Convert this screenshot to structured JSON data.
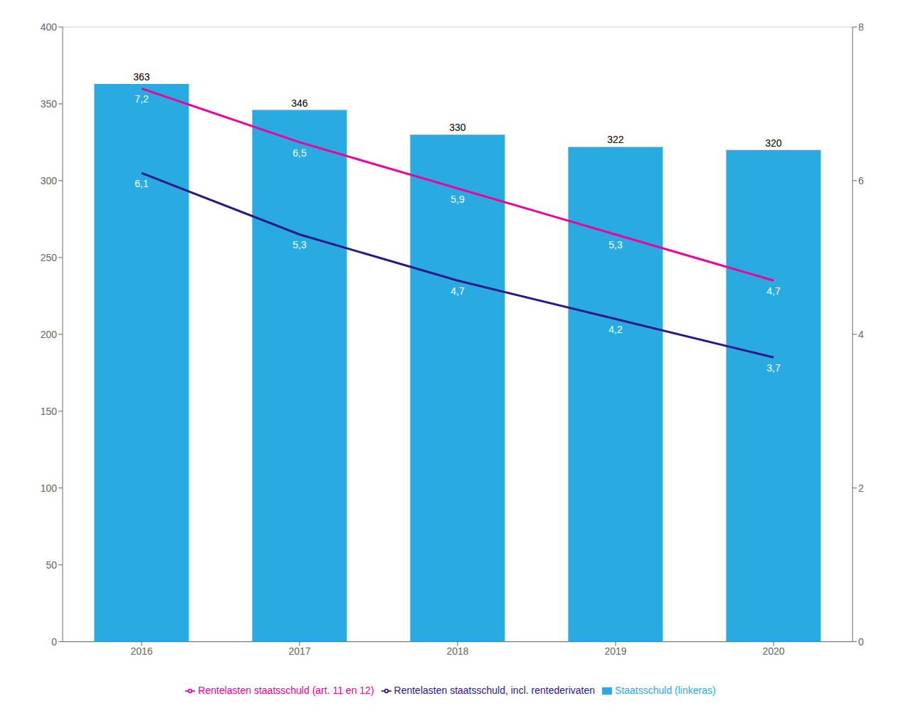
{
  "chart_data": {
    "type": "bar",
    "categories": [
      "2016",
      "2017",
      "2018",
      "2019",
      "2020"
    ],
    "series": [
      {
        "name": "Staatsschuld (linkeras)",
        "type": "bar",
        "color": "#29ABE2",
        "values": [
          363,
          346,
          330,
          322,
          320
        ],
        "data_labels": true
      },
      {
        "name": "Rentelasten staatsschuld (art. 11 en 12)",
        "type": "line",
        "axis": "y2",
        "color": "#EE0099",
        "values": [
          7.2,
          6.5,
          5.9,
          5.3,
          4.7
        ],
        "data_labels": true,
        "value_labels": [
          "7,2",
          "6,5",
          "5,9",
          "5,3",
          "4,7"
        ]
      },
      {
        "name": "Rentelasten staatsschuld, incl. rentederivaten",
        "type": "line",
        "axis": "y2",
        "color": "#2B1888",
        "values": [
          6.1,
          5.3,
          4.7,
          4.2,
          3.7
        ],
        "data_labels": true,
        "value_labels": [
          "6,1",
          "5,3",
          "4,7",
          "4,2",
          "3,7"
        ]
      }
    ],
    "ylim": [
      0,
      400
    ],
    "yticks": [
      0,
      50,
      100,
      150,
      200,
      250,
      300,
      350,
      400
    ],
    "y2lim": [
      0,
      8
    ],
    "y2ticks": [
      0,
      2,
      4,
      6,
      8
    ],
    "grid": true,
    "legend": "bottom"
  }
}
